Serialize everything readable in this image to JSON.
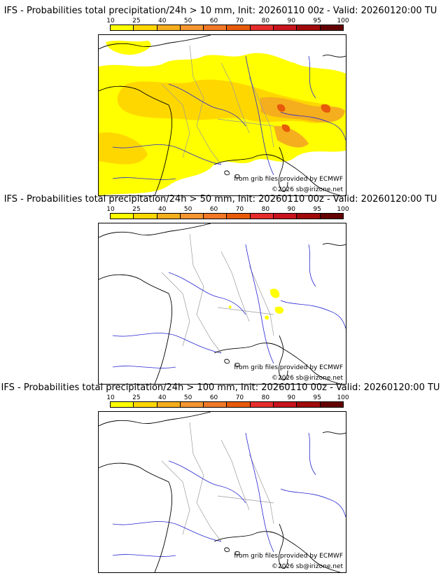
{
  "colorbar": {
    "labels": [
      "10",
      "25",
      "40",
      "50",
      "60",
      "70",
      "80",
      "90",
      "95",
      "100"
    ],
    "colors": [
      "#ffff00",
      "#ffd700",
      "#f5ae1e",
      "#f59632",
      "#f07828",
      "#e65a0a",
      "#e62d2d",
      "#c8141e",
      "#a00a0a",
      "#640000"
    ]
  },
  "panels": [
    {
      "title": "IFS - Probabilities total precipitation/24h > 10 mm, Init: 20260110 00z - Valid: 20260120:00 TU",
      "threshold_mm": 10,
      "credit_source": "from grib files provided by ECMWF",
      "credit_copyright": "©2026 sb@irizone.net"
    },
    {
      "title": "IFS - Probabilities total precipitation/24h > 50 mm, Init: 20260110 00z - Valid: 20260120:00 TU",
      "threshold_mm": 50,
      "credit_source": "from grib files provided by ECMWF",
      "credit_copyright": "©2026 sb@irizone.net"
    },
    {
      "title": "IFS - Probabilities total precipitation/24h > 100 mm, Init: 20260110 00z - Valid: 20260120:00 TU",
      "threshold_mm": 100,
      "credit_source": "from grib files provided by ECMWF",
      "credit_copyright": "©2026 sb@irizone.net"
    }
  ],
  "colors": {
    "coast": "#000000",
    "rivers": "#2828d2",
    "borders": "#9a9a9a",
    "prob_low": "#ffff00",
    "prob_mid": "#ffd700",
    "prob_high": "#f5ae1e",
    "prob_top": "#e65a0a"
  }
}
